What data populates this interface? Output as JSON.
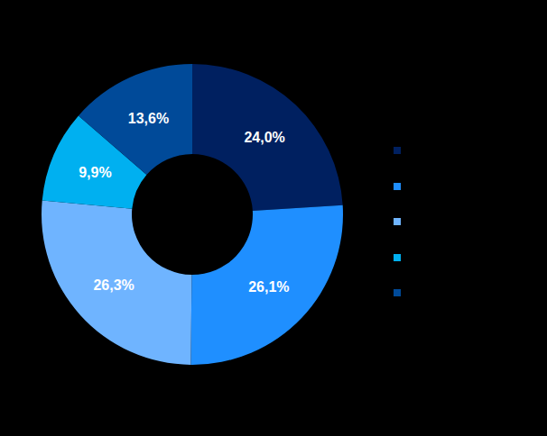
{
  "chart_data": {
    "type": "pie",
    "values": [
      24.0,
      26.1,
      26.3,
      9.9,
      13.6
    ],
    "value_labels": [
      "24,0%",
      "26,1%",
      "26,3%",
      "9,9%",
      "13,6%"
    ],
    "colors": [
      "#002060",
      "#1F8FFF",
      "#6FB4FF",
      "#00B0F0",
      "#004A99"
    ],
    "data_labels": true,
    "legend": "right"
  }
}
